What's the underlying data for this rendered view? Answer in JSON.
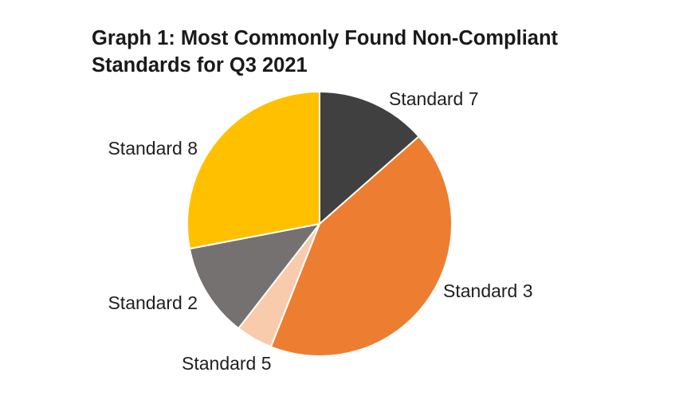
{
  "chart_data": {
    "type": "pie",
    "title_lines": [
      "Graph 1: Most Commonly Found Non-Compliant",
      "Standards for Q3 2021"
    ],
    "categories": [
      "Standard 7",
      "Standard 3",
      "Standard 5",
      "Standard 2",
      "Standard 8"
    ],
    "values": [
      13.5,
      42.5,
      4.5,
      11.5,
      28.0
    ],
    "unit": "percent",
    "start": "12 o'clock",
    "direction": "clockwise",
    "colors": [
      "#404040",
      "#ed7d31",
      "#f8cbad",
      "#767171",
      "#ffc000"
    ],
    "slice_border_color": "#ffffff"
  }
}
